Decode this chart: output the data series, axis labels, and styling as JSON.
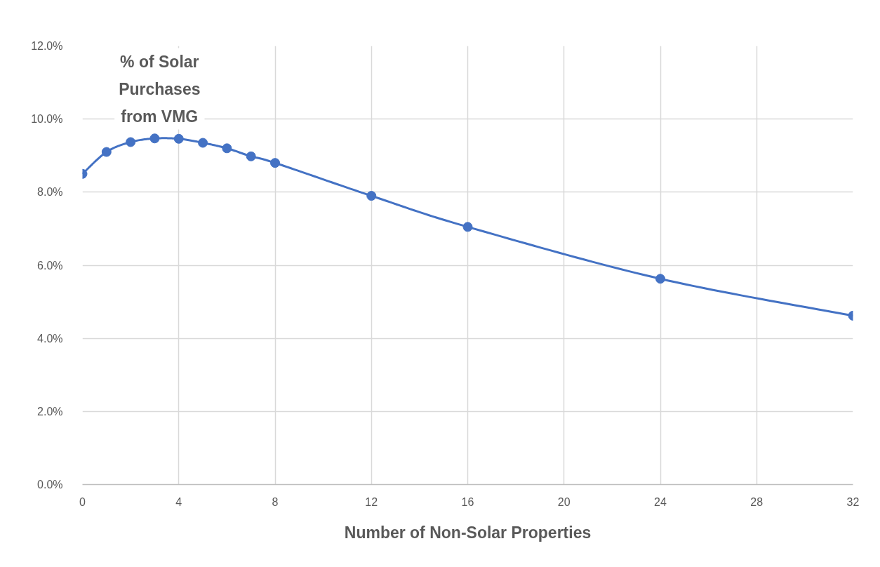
{
  "chart_data": {
    "type": "line",
    "xlabel": "Number of Non-Solar Properties",
    "ylabel": "% of Solar Purchases from VMG",
    "x": [
      0,
      1,
      2,
      3,
      4,
      5,
      6,
      7,
      8,
      12,
      16,
      24,
      32
    ],
    "values": [
      8.5,
      9.1,
      9.37,
      9.47,
      9.46,
      9.35,
      9.2,
      8.98,
      8.8,
      7.9,
      7.05,
      5.63,
      4.62
    ],
    "color": "#4472c4",
    "xlim": [
      0,
      32
    ],
    "xticks": [
      0,
      4,
      8,
      12,
      16,
      20,
      24,
      28,
      32
    ],
    "ylim": [
      0,
      12
    ],
    "yticks": [
      {
        "value": 0,
        "label": "0.0%"
      },
      {
        "value": 2,
        "label": "2.0%"
      },
      {
        "value": 4,
        "label": "4.0%"
      },
      {
        "value": 6,
        "label": "6.0%"
      },
      {
        "value": 8,
        "label": "8.0%"
      },
      {
        "value": 10,
        "label": "10.0%"
      },
      {
        "value": 12,
        "label": "12.0%"
      }
    ],
    "grid": true,
    "marker": "circle",
    "line_style": "solid"
  }
}
